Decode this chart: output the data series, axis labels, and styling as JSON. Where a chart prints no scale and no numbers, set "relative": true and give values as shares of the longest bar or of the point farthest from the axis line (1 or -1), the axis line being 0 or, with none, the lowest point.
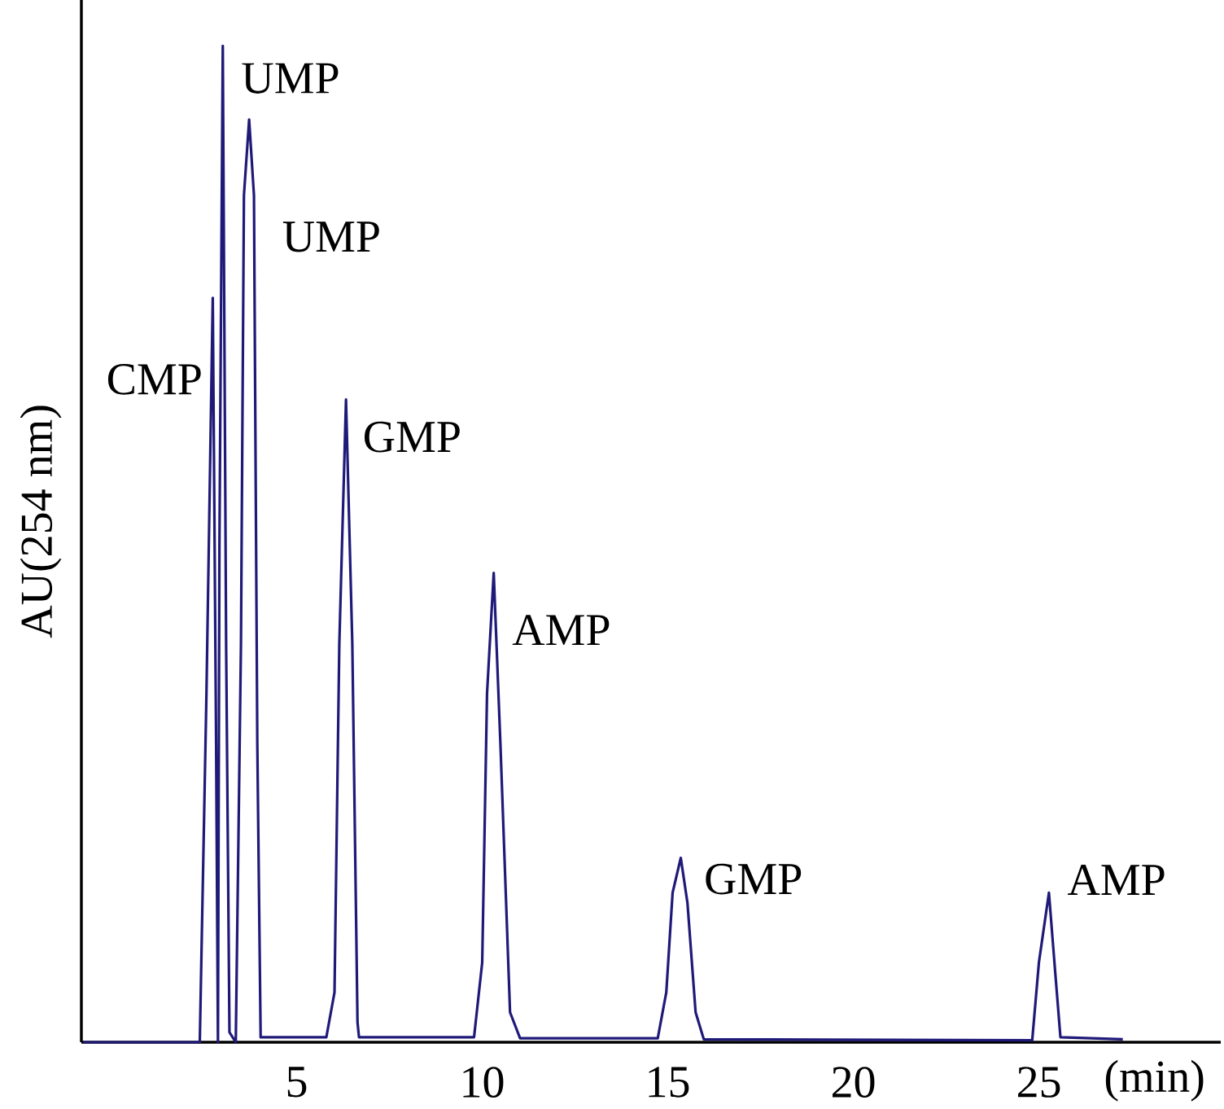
{
  "chart_data": {
    "type": "line",
    "relative": true,
    "ylabel": "AU(254 nm)",
    "xlabel": "(min)",
    "xlim": [
      -0.8,
      29.9
    ],
    "xticks": [
      5,
      10,
      15,
      20,
      25
    ],
    "tick_labels": "x",
    "x": [
      -0.75,
      2.39,
      2.57,
      2.74,
      2.83,
      2.88,
      2.92,
      3.01,
      3.1,
      3.19,
      3.36,
      3.5,
      3.58,
      3.72,
      3.85,
      3.94,
      4.03,
      5.8,
      6.02,
      6.15,
      6.33,
      6.5,
      6.64,
      6.68,
      9.78,
      10.0,
      10.13,
      10.31,
      10.49,
      10.75,
      11.02,
      14.73,
      14.96,
      15.13,
      15.35,
      15.53,
      15.75,
      15.97,
      24.82,
      25.0,
      25.27,
      25.44,
      25.58,
      27.26
    ],
    "series": [
      {
        "color": "#1f1a78",
        "values": [
          0,
          0,
          0.35,
          0.747,
          0.3,
          0,
          0.5,
          1.0,
          0.4,
          0.01,
          0,
          0.4,
          0.85,
          0.926,
          0.85,
          0.3,
          0.005,
          0.005,
          0.05,
          0.4,
          0.645,
          0.4,
          0.02,
          0.005,
          0.005,
          0.08,
          0.35,
          0.471,
          0.3,
          0.03,
          0.004,
          0.004,
          0.05,
          0.15,
          0.185,
          0.14,
          0.03,
          0.003,
          0.002,
          0.08,
          0.15,
          0.07,
          0.005,
          0.003
        ]
      }
    ],
    "annotations": [
      {
        "text": "CMP",
        "x": 2.74,
        "y": 0.747
      },
      {
        "text": "UMP",
        "x": 3.01,
        "y": 1.0
      },
      {
        "text": "UMP",
        "x": 3.72,
        "y": 0.926
      },
      {
        "text": "GMP",
        "x": 6.33,
        "y": 0.645
      },
      {
        "text": "AMP",
        "x": 10.31,
        "y": 0.471
      },
      {
        "text": "GMP",
        "x": 15.35,
        "y": 0.185
      },
      {
        "text": "AMP",
        "x": 25.27,
        "y": 0.15
      }
    ]
  }
}
